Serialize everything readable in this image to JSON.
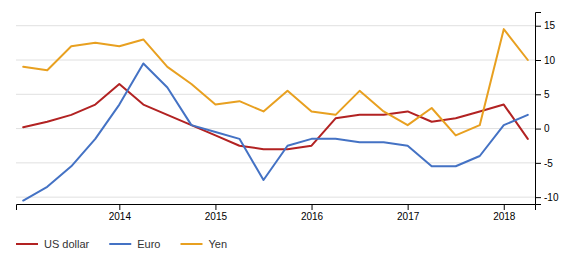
{
  "chart_data": {
    "type": "line",
    "categories": [
      null,
      null,
      null,
      null,
      "2014",
      null,
      null,
      null,
      "2015",
      null,
      null,
      null,
      "2016",
      null,
      null,
      null,
      "2017",
      null,
      null,
      null,
      "2018",
      null
    ],
    "series": [
      {
        "name": "US dollar",
        "color": "#b22222",
        "values": [
          0.2,
          1.0,
          2.0,
          3.5,
          6.5,
          3.5,
          2.0,
          0.5,
          -1.0,
          -2.5,
          -3.0,
          -3.0,
          -2.5,
          1.5,
          2.0,
          2.0,
          2.5,
          1.0,
          1.5,
          2.5,
          3.5,
          -1.5
        ]
      },
      {
        "name": "Euro",
        "color": "#4472c4",
        "values": [
          -10.5,
          -8.5,
          -5.5,
          -1.5,
          3.5,
          9.5,
          6.0,
          0.5,
          -0.5,
          -1.5,
          -7.5,
          -2.5,
          -1.5,
          -1.5,
          -2.0,
          -2.0,
          -2.5,
          -5.5,
          -5.5,
          -4.0,
          0.5,
          2.0
        ]
      },
      {
        "name": "Yen",
        "color": "#e8a020",
        "values": [
          9.0,
          8.5,
          12.0,
          12.5,
          12.0,
          13.0,
          9.0,
          6.5,
          3.5,
          4.0,
          2.5,
          5.5,
          2.5,
          2.0,
          5.5,
          2.5,
          0.5,
          3.0,
          -1.0,
          0.5,
          14.5,
          10.0
        ]
      }
    ],
    "ylim": [
      -11,
      17
    ],
    "yticks": [
      -10,
      -5,
      0,
      5,
      10,
      15
    ],
    "grid": true,
    "legend": "bottom"
  }
}
